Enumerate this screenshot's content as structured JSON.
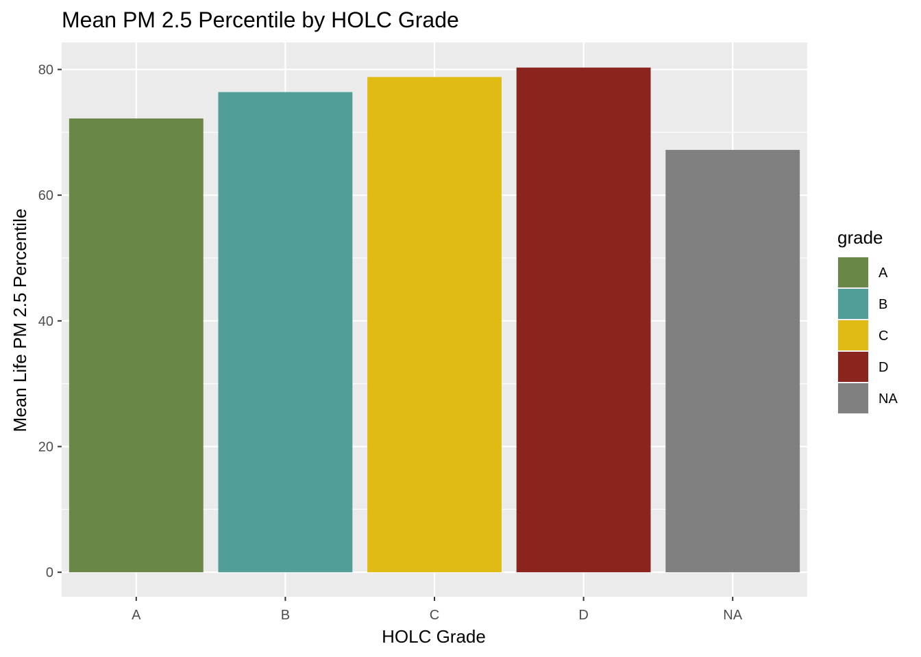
{
  "chart_data": {
    "type": "bar",
    "title": "Mean PM 2.5 Percentile by HOLC Grade",
    "xlabel": "HOLC Grade",
    "ylabel": "Mean Life PM 2.5 Percentile",
    "categories": [
      "A",
      "B",
      "C",
      "D",
      "NA"
    ],
    "values": [
      72.2,
      76.4,
      78.8,
      80.3,
      67.2
    ],
    "colors": [
      "#6a8747",
      "#519e98",
      "#e0bb14",
      "#8b241d",
      "#808080"
    ],
    "ylim": [
      -3.9,
      84.3
    ],
    "yticks": [
      0,
      20,
      40,
      60,
      80
    ],
    "ytick_labels": [
      "0",
      "20",
      "40",
      "60",
      "80"
    ],
    "grid": true,
    "panel_background": "#ebebeb",
    "legend": {
      "title": "grade",
      "position": "right",
      "entries": [
        "A",
        "B",
        "C",
        "D",
        "NA"
      ]
    }
  }
}
